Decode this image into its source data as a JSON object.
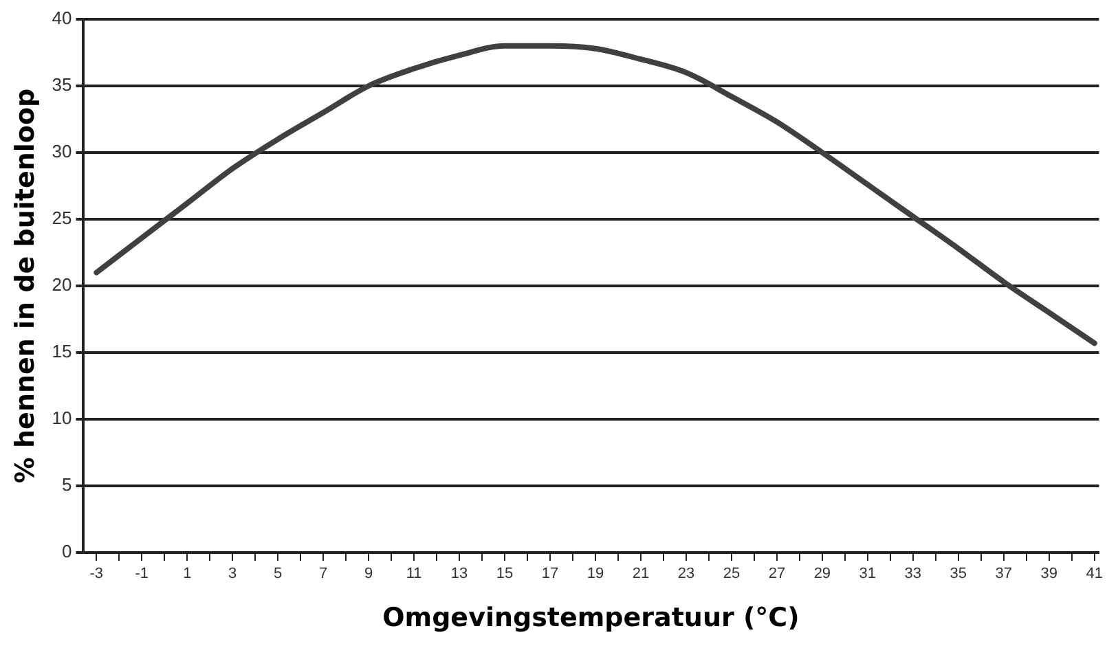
{
  "chart_data": {
    "type": "line",
    "xlabel": "Omgevingstemperatuur (°C)",
    "ylabel": "% hennen in de buitenloop",
    "x": [
      -3,
      -1,
      1,
      3,
      5,
      7,
      9,
      11,
      13,
      15,
      17,
      19,
      21,
      23,
      25,
      27,
      29,
      31,
      33,
      35,
      37,
      39,
      41
    ],
    "series": [
      {
        "color": "#404040",
        "values": [
          21,
          23.6,
          26.2,
          28.8,
          31,
          33,
          35,
          36.3,
          37.3,
          38,
          38,
          37.8,
          37,
          36,
          34.2,
          32.3,
          30,
          27.6,
          25.2,
          22.8,
          20.3,
          18,
          15.7
        ]
      }
    ],
    "xlim": [
      -3.6,
      41.2
    ],
    "xticks": [
      -3,
      {
        "value": -2,
        "label": null
      },
      -1,
      {
        "value": 0,
        "label": null
      },
      1,
      {
        "value": 2,
        "label": null
      },
      3,
      {
        "value": 4,
        "label": null
      },
      5,
      {
        "value": 6,
        "label": null
      },
      7,
      {
        "value": 8,
        "label": null
      },
      9,
      {
        "value": 10,
        "label": null
      },
      11,
      {
        "value": 12,
        "label": null
      },
      13,
      {
        "value": 14,
        "label": null
      },
      15,
      {
        "value": 16,
        "label": null
      },
      17,
      {
        "value": 18,
        "label": null
      },
      19,
      {
        "value": 20,
        "label": null
      },
      21,
      {
        "value": 22,
        "label": null
      },
      23,
      {
        "value": 24,
        "label": null
      },
      25,
      {
        "value": 26,
        "label": null
      },
      27,
      {
        "value": 28,
        "label": null
      },
      29,
      {
        "value": 30,
        "label": null
      },
      31,
      {
        "value": 32,
        "label": null
      },
      33,
      {
        "value": 34,
        "label": null
      },
      35,
      {
        "value": 36,
        "label": null
      },
      37,
      {
        "value": 38,
        "label": null
      },
      39,
      {
        "value": 40,
        "label": null
      },
      41
    ],
    "ylim": [
      0,
      40
    ],
    "yticks": [
      0,
      5,
      10,
      15,
      20,
      25,
      30,
      35,
      40
    ],
    "grid": "y",
    "legend": false,
    "marker": "none",
    "line_style": "solid"
  }
}
